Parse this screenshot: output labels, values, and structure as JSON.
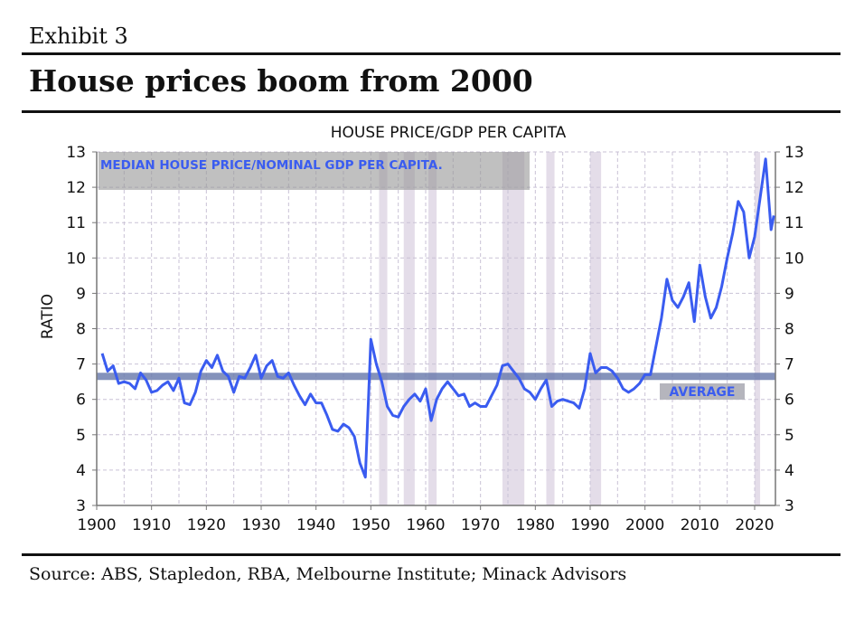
{
  "header": {
    "exhibit": "Exhibit 3",
    "title": "House prices boom from 2000"
  },
  "footer": {
    "source": "Source: ABS, Stapledon, RBA, Melbourne Institute; Minack Advisors"
  },
  "chart_data": {
    "type": "line",
    "title": "HOUSE PRICE/GDP PER CAPITA",
    "ylabel": "RATIO",
    "xlabel": "",
    "xlim": [
      1900,
      2024
    ],
    "ylim": [
      3,
      13
    ],
    "xticks": [
      1900,
      1910,
      1920,
      1930,
      1940,
      1950,
      1960,
      1970,
      1980,
      1990,
      2000,
      2010,
      2020
    ],
    "yticks": [
      3,
      4,
      5,
      6,
      7,
      8,
      9,
      10,
      11,
      12,
      13
    ],
    "grid": true,
    "legend_text": "MEDIAN HOUSE PRICE/NOMINAL GDP PER CAPITA.",
    "average": {
      "label": "AVERAGE",
      "value": 6.65
    },
    "recessions": [
      [
        1951.5,
        1953
      ],
      [
        1956,
        1958
      ],
      [
        1960.5,
        1962
      ],
      [
        1974,
        1978
      ],
      [
        1982,
        1983.5
      ],
      [
        1990,
        1992
      ],
      [
        2020,
        2021
      ]
    ],
    "series": [
      {
        "name": "Median house price/nominal GDP per capita",
        "color": "#3a5cf0",
        "x": [
          1901,
          1902,
          1903,
          1904,
          1905,
          1906,
          1907,
          1908,
          1909,
          1910,
          1911,
          1912,
          1913,
          1914,
          1915,
          1916,
          1917,
          1918,
          1919,
          1920,
          1921,
          1922,
          1923,
          1924,
          1925,
          1926,
          1927,
          1928,
          1929,
          1930,
          1931,
          1932,
          1933,
          1934,
          1935,
          1936,
          1937,
          1938,
          1939,
          1940,
          1941,
          1942,
          1943,
          1944,
          1945,
          1946,
          1947,
          1948,
          1949,
          1950,
          1951,
          1952,
          1953,
          1954,
          1955,
          1956,
          1957,
          1958,
          1959,
          1960,
          1961,
          1962,
          1963,
          1964,
          1965,
          1966,
          1967,
          1968,
          1969,
          1970,
          1971,
          1972,
          1973,
          1974,
          1975,
          1976,
          1977,
          1978,
          1979,
          1980,
          1981,
          1982,
          1983,
          1984,
          1985,
          1986,
          1987,
          1988,
          1989,
          1990,
          1991,
          1992,
          1993,
          1994,
          1995,
          1996,
          1997,
          1998,
          1999,
          2000,
          2001,
          2002,
          2003,
          2004,
          2005,
          2006,
          2007,
          2008,
          2009,
          2010,
          2011,
          2012,
          2013,
          2014,
          2015,
          2016,
          2017,
          2018,
          2019,
          2020,
          2021,
          2022,
          2023,
          2023.5
        ],
        "values": [
          7.3,
          6.8,
          6.95,
          6.45,
          6.5,
          6.45,
          6.3,
          6.75,
          6.55,
          6.2,
          6.25,
          6.4,
          6.5,
          6.25,
          6.6,
          5.9,
          5.85,
          6.2,
          6.8,
          7.1,
          6.9,
          7.25,
          6.8,
          6.65,
          6.2,
          6.65,
          6.6,
          6.9,
          7.25,
          6.6,
          6.95,
          7.1,
          6.65,
          6.6,
          6.75,
          6.4,
          6.1,
          5.85,
          6.15,
          5.9,
          5.9,
          5.55,
          5.15,
          5.1,
          5.3,
          5.2,
          4.95,
          4.2,
          3.8,
          7.7,
          7.0,
          6.5,
          5.8,
          5.55,
          5.5,
          5.8,
          6.0,
          6.15,
          5.95,
          6.3,
          5.4,
          6.0,
          6.3,
          6.5,
          6.3,
          6.1,
          6.15,
          5.8,
          5.9,
          5.8,
          5.8,
          6.1,
          6.4,
          6.95,
          7.0,
          6.8,
          6.6,
          6.3,
          6.2,
          6.0,
          6.3,
          6.55,
          5.8,
          5.95,
          6.0,
          5.95,
          5.9,
          5.75,
          6.3,
          7.3,
          6.75,
          6.9,
          6.9,
          6.8,
          6.6,
          6.3,
          6.2,
          6.3,
          6.45,
          6.7,
          6.7,
          7.5,
          8.3,
          9.4,
          8.8,
          8.6,
          8.9,
          9.3,
          8.2,
          9.8,
          8.9,
          8.3,
          8.6,
          9.2,
          10.0,
          10.7,
          11.6,
          11.3,
          10.0,
          10.6,
          11.7,
          12.8,
          10.8,
          11.2
        ]
      }
    ]
  }
}
